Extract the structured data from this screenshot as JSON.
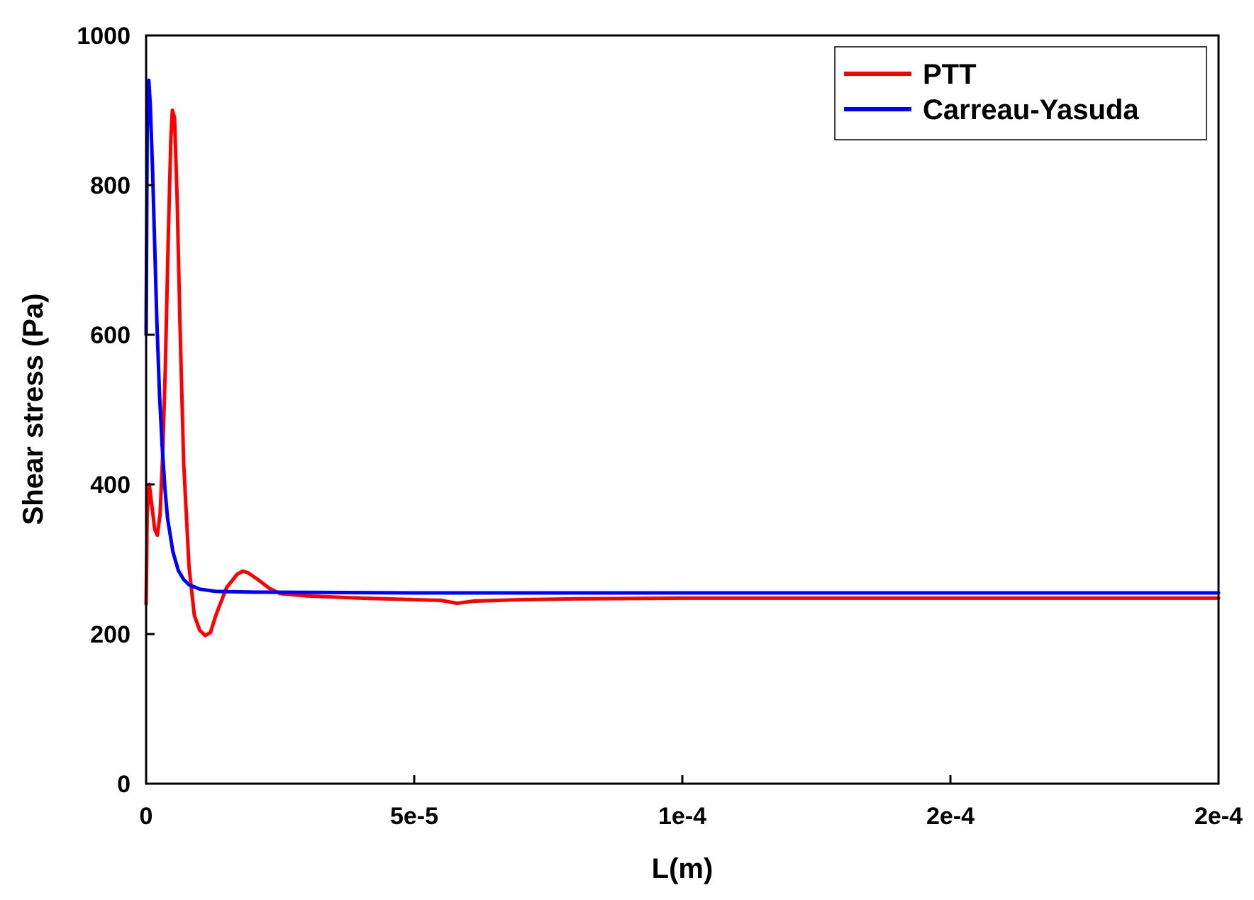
{
  "chart_data": {
    "type": "line",
    "title": "",
    "xlabel": "L(m)",
    "ylabel": "Shear stress (Pa)",
    "xlim": [
      0,
      0.0002
    ],
    "ylim": [
      0,
      1000
    ],
    "x_ticks": [
      {
        "value": 0,
        "label": "0"
      },
      {
        "value": 5e-05,
        "label": "5e-5"
      },
      {
        "value": 0.0001,
        "label": "1e-4"
      },
      {
        "value": 0.00015,
        "label": "2e-4"
      },
      {
        "value": 0.0002,
        "label": "2e-4"
      }
    ],
    "y_ticks": [
      {
        "value": 0,
        "label": "0"
      },
      {
        "value": 200,
        "label": "200"
      },
      {
        "value": 400,
        "label": "400"
      },
      {
        "value": 600,
        "label": "600"
      },
      {
        "value": 800,
        "label": "800"
      },
      {
        "value": 1000,
        "label": "1000"
      }
    ],
    "grid": false,
    "legend_position": "top-right",
    "series": [
      {
        "name": "PTT",
        "color": "#ff0000",
        "points": [
          [
            0,
            240
          ],
          [
            2e-07,
            360
          ],
          [
            6e-07,
            400
          ],
          [
            1.1e-06,
            370
          ],
          [
            1.6e-06,
            340
          ],
          [
            2.1e-06,
            332
          ],
          [
            2.6e-06,
            360
          ],
          [
            3.1e-06,
            440
          ],
          [
            3.6e-06,
            560
          ],
          [
            4.1e-06,
            720
          ],
          [
            4.6e-06,
            860
          ],
          [
            4.9e-06,
            900
          ],
          [
            5.3e-06,
            890
          ],
          [
            5.8e-06,
            780
          ],
          [
            6.3e-06,
            620
          ],
          [
            7e-06,
            430
          ],
          [
            8e-06,
            290
          ],
          [
            9e-06,
            225
          ],
          [
            1e-05,
            205
          ],
          [
            1.1e-05,
            198
          ],
          [
            1.2e-05,
            202
          ],
          [
            1.3e-05,
            225
          ],
          [
            1.5e-05,
            262
          ],
          [
            1.7e-05,
            280
          ],
          [
            1.8e-05,
            284
          ],
          [
            1.9e-05,
            282
          ],
          [
            2.1e-05,
            272
          ],
          [
            2.3e-05,
            261
          ],
          [
            2.5e-05,
            254
          ],
          [
            3e-05,
            251
          ],
          [
            4e-05,
            248
          ],
          [
            5e-05,
            246
          ],
          [
            5.5e-05,
            245
          ],
          [
            5.8e-05,
            241
          ],
          [
            6.1e-05,
            244
          ],
          [
            7e-05,
            246
          ],
          [
            8e-05,
            247
          ],
          [
            0.0001,
            248
          ],
          [
            0.00015,
            248
          ],
          [
            0.0002,
            248
          ]
        ]
      },
      {
        "name": "Carreau-Yasuda",
        "color": "#0000ff",
        "points": [
          [
            0,
            600
          ],
          [
            2e-07,
            870
          ],
          [
            5e-07,
            940
          ],
          [
            8e-07,
            905
          ],
          [
            1.2e-06,
            820
          ],
          [
            1.6e-06,
            720
          ],
          [
            2e-06,
            620
          ],
          [
            2.5e-06,
            520
          ],
          [
            3e-06,
            450
          ],
          [
            3.5e-06,
            395
          ],
          [
            4e-06,
            355
          ],
          [
            5e-06,
            310
          ],
          [
            6e-06,
            285
          ],
          [
            7e-06,
            273
          ],
          [
            8e-06,
            266
          ],
          [
            1e-05,
            260
          ],
          [
            1.3e-05,
            257
          ],
          [
            2e-05,
            256
          ],
          [
            5e-05,
            255
          ],
          [
            0.0001,
            255
          ],
          [
            0.00015,
            255
          ],
          [
            0.0002,
            255
          ]
        ]
      }
    ]
  }
}
